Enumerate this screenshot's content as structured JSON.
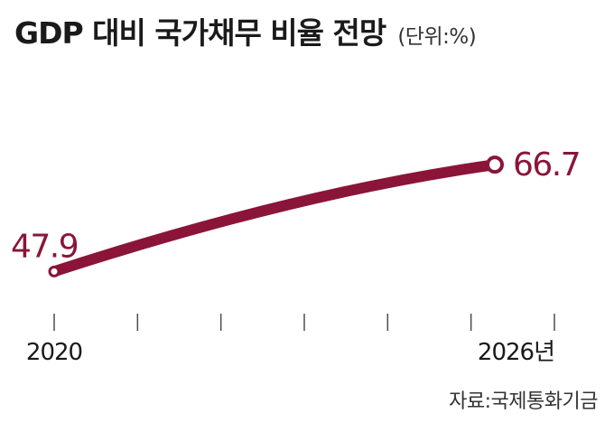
{
  "chart_data": {
    "type": "line",
    "title": "GDP 대비 국가채무 비율 전망",
    "unit": "(단위:%)",
    "x": [
      2020,
      2026
    ],
    "series": [
      {
        "values": [
          47.9,
          66.7
        ]
      }
    ],
    "data_labels": [
      "47.9",
      "66.7"
    ],
    "x_tick_labels": [
      "2020",
      "2026년"
    ],
    "x_tick_count": 7,
    "ylim": [
      40,
      75
    ],
    "grid": false,
    "legend": "none",
    "source": "자료:국제통화기금",
    "colors": {
      "line": "#8a1538",
      "text": "#1a1a1a"
    }
  }
}
